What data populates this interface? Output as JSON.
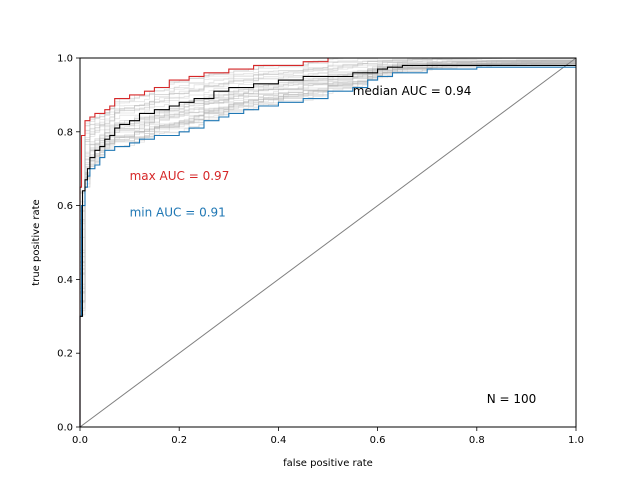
{
  "chart_data": {
    "type": "line",
    "xlabel": "false positive rate",
    "ylabel": "true positive rate",
    "xlim": [
      0,
      1
    ],
    "ylim": [
      0,
      1
    ],
    "x_ticks": [
      "0.0",
      "0.2",
      "0.4",
      "0.6",
      "0.8",
      "1.0"
    ],
    "y_ticks": [
      "0.0",
      "0.2",
      "0.4",
      "0.6",
      "0.8",
      "1.0"
    ],
    "grid": false,
    "legend": "none",
    "colors": {
      "max": "#d62728",
      "min": "#1f77b4",
      "median": "#000000",
      "background": "#b0b0b0",
      "diagonal": "#808080"
    },
    "annotations": {
      "median": "median AUC = 0.94",
      "max": "max AUC = 0.97",
      "min": "min AUC = 0.91",
      "count": "N = 100"
    },
    "series": [
      {
        "role": "max",
        "points": [
          [
            0,
            0
          ],
          [
            0,
            0.45
          ],
          [
            0,
            0.65
          ],
          [
            0.003,
            0.79
          ],
          [
            0.01,
            0.8
          ],
          [
            0.01,
            0.83
          ],
          [
            0.02,
            0.84
          ],
          [
            0.03,
            0.85
          ],
          [
            0.05,
            0.86
          ],
          [
            0.06,
            0.87
          ],
          [
            0.07,
            0.89
          ],
          [
            0.1,
            0.9
          ],
          [
            0.13,
            0.91
          ],
          [
            0.15,
            0.92
          ],
          [
            0.18,
            0.94
          ],
          [
            0.22,
            0.95
          ],
          [
            0.25,
            0.96
          ],
          [
            0.3,
            0.97
          ],
          [
            0.35,
            0.98
          ],
          [
            0.45,
            0.99
          ],
          [
            0.5,
            1.0
          ],
          [
            1,
            1
          ]
        ]
      },
      {
        "role": "median",
        "points": [
          [
            0,
            0
          ],
          [
            0,
            0.3
          ],
          [
            0.005,
            0.64
          ],
          [
            0.01,
            0.67
          ],
          [
            0.015,
            0.7
          ],
          [
            0.02,
            0.73
          ],
          [
            0.03,
            0.75
          ],
          [
            0.04,
            0.76
          ],
          [
            0.05,
            0.78
          ],
          [
            0.06,
            0.79
          ],
          [
            0.07,
            0.81
          ],
          [
            0.08,
            0.82
          ],
          [
            0.1,
            0.83
          ],
          [
            0.12,
            0.85
          ],
          [
            0.15,
            0.86
          ],
          [
            0.18,
            0.87
          ],
          [
            0.2,
            0.88
          ],
          [
            0.23,
            0.89
          ],
          [
            0.27,
            0.91
          ],
          [
            0.3,
            0.92
          ],
          [
            0.35,
            0.93
          ],
          [
            0.4,
            0.94
          ],
          [
            0.45,
            0.95
          ],
          [
            0.55,
            0.96
          ],
          [
            0.6,
            0.97
          ],
          [
            0.62,
            0.975
          ],
          [
            0.65,
            0.98
          ],
          [
            1,
            0.98
          ]
        ]
      },
      {
        "role": "min",
        "points": [
          [
            0,
            0
          ],
          [
            0,
            0.3
          ],
          [
            0.003,
            0.6
          ],
          [
            0.01,
            0.65
          ],
          [
            0.015,
            0.68
          ],
          [
            0.02,
            0.7
          ],
          [
            0.03,
            0.71
          ],
          [
            0.04,
            0.73
          ],
          [
            0.05,
            0.75
          ],
          [
            0.07,
            0.76
          ],
          [
            0.1,
            0.77
          ],
          [
            0.12,
            0.78
          ],
          [
            0.15,
            0.79
          ],
          [
            0.2,
            0.8
          ],
          [
            0.22,
            0.81
          ],
          [
            0.25,
            0.83
          ],
          [
            0.28,
            0.84
          ],
          [
            0.3,
            0.85
          ],
          [
            0.33,
            0.86
          ],
          [
            0.36,
            0.87
          ],
          [
            0.4,
            0.88
          ],
          [
            0.45,
            0.89
          ],
          [
            0.5,
            0.91
          ],
          [
            0.55,
            0.92
          ],
          [
            0.58,
            0.94
          ],
          [
            0.6,
            0.95
          ],
          [
            0.63,
            0.96
          ],
          [
            0.7,
            0.97
          ],
          [
            0.8,
            0.975
          ],
          [
            1,
            0.975
          ]
        ]
      },
      {
        "role": "diagonal",
        "points": [
          [
            0,
            0
          ],
          [
            1,
            1
          ]
        ]
      }
    ]
  }
}
